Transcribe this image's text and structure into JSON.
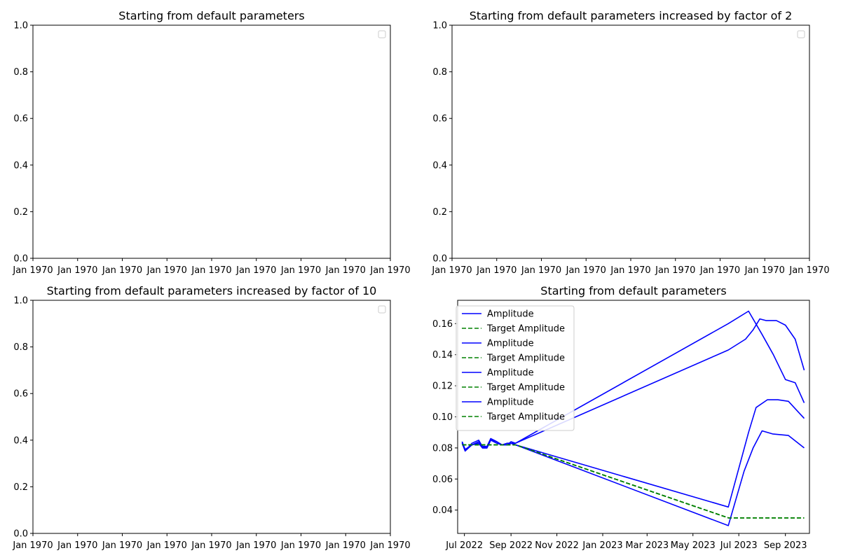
{
  "chart_data": [
    {
      "type": "line",
      "title": "Starting from default parameters",
      "ylim": [
        0,
        1
      ],
      "yticks": [
        "0.0",
        "0.2",
        "0.4",
        "0.6",
        "0.8",
        "1.0"
      ],
      "xticks": [
        "Jan 1970",
        "Jan 1970",
        "Jan 1970",
        "Jan 1970",
        "Jan 1970",
        "Jan 1970",
        "Jan 1970",
        "Jan 1970",
        "Jan 1970"
      ],
      "legend": "top-right",
      "series": []
    },
    {
      "type": "line",
      "title": "Starting from default parameters increased by factor of 2",
      "ylim": [
        0,
        1
      ],
      "yticks": [
        "0.0",
        "0.2",
        "0.4",
        "0.6",
        "0.8",
        "1.0"
      ],
      "xticks": [
        "Jan 1970",
        "Jan 1970",
        "Jan 1970",
        "Jan 1970",
        "Jan 1970",
        "Jan 1970",
        "Jan 1970",
        "Jan 1970",
        "Jan 1970"
      ],
      "legend": "top-right",
      "series": []
    },
    {
      "type": "line",
      "title": "Starting from default parameters increased by factor of 10",
      "ylim": [
        0,
        1
      ],
      "yticks": [
        "0.0",
        "0.2",
        "0.4",
        "0.6",
        "0.8",
        "1.0"
      ],
      "xticks": [
        "Jan 1970",
        "Jan 1970",
        "Jan 1970",
        "Jan 1970",
        "Jan 1970",
        "Jan 1970",
        "Jan 1970",
        "Jan 1970",
        "Jan 1970"
      ],
      "legend": "top-right",
      "series": []
    },
    {
      "type": "line",
      "title": "Starting from default parameters",
      "xlim": [
        "2022-06-22",
        "2023-10-03"
      ],
      "ylim": [
        0.025,
        0.175
      ],
      "yticks": [
        "0.04",
        "0.06",
        "0.08",
        "0.10",
        "0.12",
        "0.14",
        "0.16"
      ],
      "xticks": [
        {
          "date": "2022-07-01",
          "label": "Jul 2022"
        },
        {
          "date": "2022-09-01",
          "label": "Sep 2022"
        },
        {
          "date": "2022-11-01",
          "label": "Nov 2022"
        },
        {
          "date": "2023-01-01",
          "label": "Jan 2023"
        },
        {
          "date": "2023-03-01",
          "label": "Mar 2023"
        },
        {
          "date": "2023-05-01",
          "label": "May 2023"
        },
        {
          "date": "2023-07-01",
          "label": "Jul 2023"
        },
        {
          "date": "2023-09-01",
          "label": "Sep 2023"
        }
      ],
      "legend": "top-left",
      "colors": {
        "amplitude": "#0000ff",
        "target": "#008000"
      },
      "series": [
        {
          "name": "Amplitude",
          "style": "solid",
          "x": [
            "2022-06-28",
            "2022-07-02",
            "2022-07-11",
            "2022-07-20",
            "2022-07-25",
            "2022-07-31",
            "2022-08-05",
            "2022-08-13",
            "2022-08-20",
            "2022-08-27",
            "2022-09-01",
            "2022-09-07",
            "2023-06-17",
            "2023-07-14",
            "2023-08-01",
            "2023-08-16",
            "2023-09-01",
            "2023-09-14",
            "2023-09-26"
          ],
          "y": [
            0.084,
            0.078,
            0.083,
            0.085,
            0.081,
            0.081,
            0.086,
            0.084,
            0.082,
            0.083,
            0.083,
            0.083,
            0.16,
            0.168,
            0.153,
            0.14,
            0.124,
            0.122,
            0.109
          ]
        },
        {
          "name": "Target Amplitude",
          "style": "dashed",
          "x": [
            "2022-06-28",
            "2022-09-07",
            "2023-06-17",
            "2023-09-26"
          ],
          "y": [
            0.082,
            0.082,
            0.035,
            0.035
          ]
        },
        {
          "name": "Amplitude",
          "style": "solid",
          "x": [
            "2022-06-28",
            "2022-07-02",
            "2022-07-11",
            "2022-07-20",
            "2022-07-25",
            "2022-07-31",
            "2022-08-05",
            "2022-08-13",
            "2022-08-20",
            "2022-08-27",
            "2022-09-01",
            "2022-09-07",
            "2023-06-17",
            "2023-07-10",
            "2023-07-20",
            "2023-07-29",
            "2023-08-06",
            "2023-08-20",
            "2023-09-01",
            "2023-09-14",
            "2023-09-26"
          ],
          "y": [
            0.084,
            0.079,
            0.082,
            0.083,
            0.08,
            0.08,
            0.086,
            0.084,
            0.082,
            0.082,
            0.084,
            0.083,
            0.143,
            0.15,
            0.156,
            0.163,
            0.162,
            0.162,
            0.159,
            0.15,
            0.13
          ]
        },
        {
          "name": "Target Amplitude",
          "style": "dashed",
          "x": [
            "2022-06-28",
            "2022-09-07",
            "2023-06-17",
            "2023-09-26"
          ],
          "y": [
            0.082,
            0.082,
            0.035,
            0.035
          ]
        },
        {
          "name": "Amplitude",
          "style": "solid",
          "x": [
            "2022-06-28",
            "2022-07-02",
            "2022-07-11",
            "2022-07-20",
            "2022-07-25",
            "2022-07-31",
            "2022-08-05",
            "2022-08-13",
            "2022-08-20",
            "2022-08-27",
            "2022-09-01",
            "2022-09-07",
            "2023-06-17",
            "2023-07-14",
            "2023-07-24",
            "2023-08-08",
            "2023-08-22",
            "2023-09-05",
            "2023-09-26"
          ],
          "y": [
            0.083,
            0.078,
            0.082,
            0.084,
            0.081,
            0.08,
            0.085,
            0.084,
            0.082,
            0.082,
            0.083,
            0.082,
            0.042,
            0.09,
            0.106,
            0.111,
            0.111,
            0.11,
            0.099
          ]
        },
        {
          "name": "Target Amplitude",
          "style": "dashed",
          "x": [
            "2022-06-28",
            "2022-09-07",
            "2023-06-17",
            "2023-09-26"
          ],
          "y": [
            0.082,
            0.082,
            0.035,
            0.035
          ]
        },
        {
          "name": "Amplitude",
          "style": "solid",
          "x": [
            "2022-06-28",
            "2022-07-02",
            "2022-07-11",
            "2022-07-20",
            "2022-07-25",
            "2022-07-31",
            "2022-08-05",
            "2022-08-13",
            "2022-08-20",
            "2022-08-27",
            "2022-09-01",
            "2022-09-07",
            "2023-06-17",
            "2023-07-08",
            "2023-07-20",
            "2023-08-01",
            "2023-08-15",
            "2023-09-05",
            "2023-09-26"
          ],
          "y": [
            0.083,
            0.079,
            0.082,
            0.083,
            0.08,
            0.08,
            0.085,
            0.083,
            0.082,
            0.082,
            0.083,
            0.082,
            0.03,
            0.065,
            0.08,
            0.091,
            0.089,
            0.088,
            0.08
          ]
        },
        {
          "name": "Target Amplitude",
          "style": "dashed",
          "x": [
            "2022-06-28",
            "2022-09-07",
            "2023-06-17",
            "2023-09-26"
          ],
          "y": [
            0.082,
            0.082,
            0.035,
            0.035
          ]
        }
      ]
    }
  ]
}
